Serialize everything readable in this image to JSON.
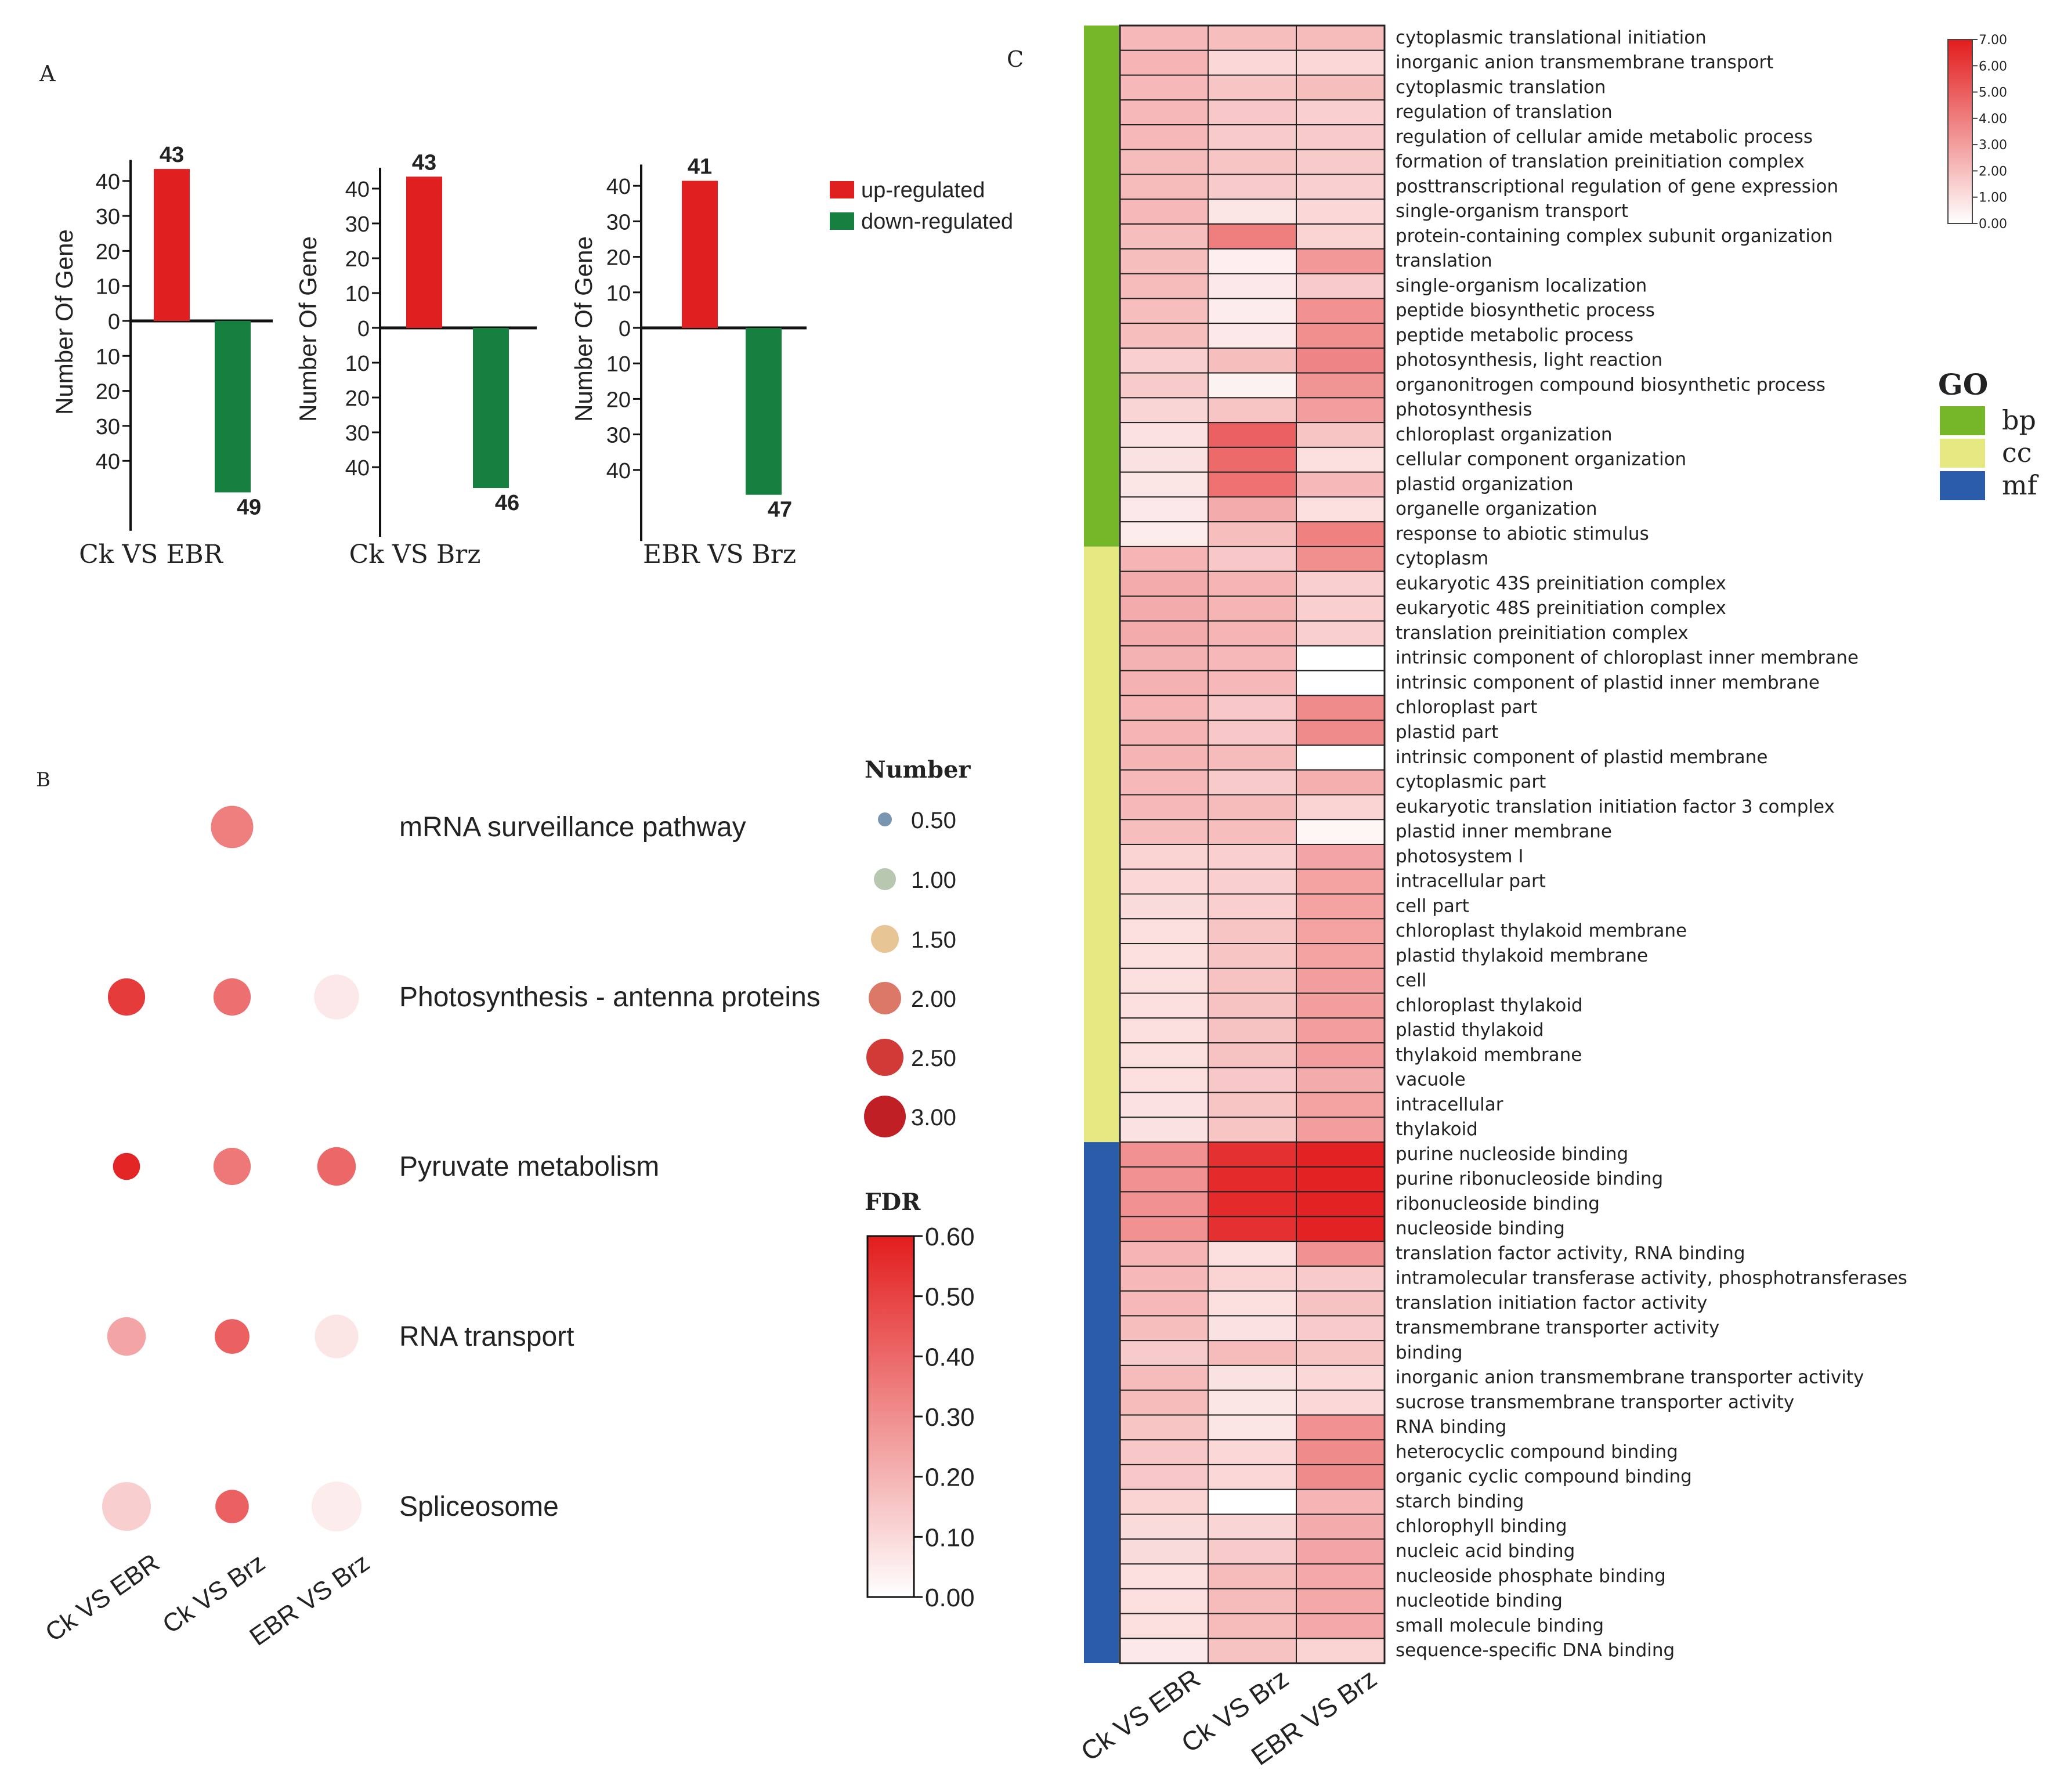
{
  "chart_data": [
    {
      "panel": "A",
      "type": "bar",
      "panel_label": "A",
      "ylabel": "Number Of Gene",
      "legend": {
        "position": "right",
        "up": "up-regulated",
        "down": "down-regulated"
      },
      "colors": {
        "up": "#e02020",
        "down": "#168040"
      },
      "ticks": [
        "40",
        "30",
        "20",
        "10",
        "0",
        "10",
        "20",
        "30",
        "40"
      ],
      "groups": [
        {
          "name": "Ck VS EBR",
          "up": 43,
          "down": 49
        },
        {
          "name": "Ck VS Brz",
          "up": 43,
          "down": 46
        },
        {
          "name": "EBR VS Brz",
          "up": 41,
          "down": 47
        }
      ]
    },
    {
      "panel": "B",
      "type": "scatter",
      "panel_label": "B",
      "x": [
        "Ck VS EBR",
        "Ck VS Brz",
        "EBR VS Brz"
      ],
      "pathways": [
        "mRNA surveillance pathway",
        "Photosynthesis - antenna proteins",
        "Pyruvate metabolism",
        "RNA transport",
        "Spliceosome"
      ],
      "number": [
        [
          null,
          2.5,
          null
        ],
        [
          2.1,
          2.1,
          2.7
        ],
        [
          1.3,
          2.1,
          2.2
        ],
        [
          2.2,
          1.9,
          2.6
        ],
        [
          3.0,
          1.8,
          3.1
        ]
      ],
      "fdr": [
        [
          null,
          0.34,
          null
        ],
        [
          0.52,
          0.38,
          0.06
        ],
        [
          0.58,
          0.36,
          0.4
        ],
        [
          0.24,
          0.42,
          0.07
        ],
        [
          0.13,
          0.42,
          0.05
        ]
      ],
      "size_legend_title": "Number",
      "size_legend": [
        {
          "label": "0.50",
          "value": 0.5,
          "color": "#7a95b0"
        },
        {
          "label": "1.00",
          "value": 1.0,
          "color": "#b8c8b0"
        },
        {
          "label": "1.50",
          "value": 1.5,
          "color": "#e8c595"
        },
        {
          "label": "2.00",
          "value": 2.0,
          "color": "#dc7868"
        },
        {
          "label": "2.50",
          "value": 2.5,
          "color": "#d23a38"
        },
        {
          "label": "3.00",
          "value": 3.0,
          "color": "#c01f25"
        }
      ],
      "color_legend_title": "FDR",
      "color_range": [
        0,
        0.6
      ],
      "color_ticks": [
        "0.60",
        "0.50",
        "0.40",
        "0.30",
        "0.20",
        "0.10",
        "0.00"
      ]
    },
    {
      "panel": "C",
      "type": "heatmap",
      "panel_label": "C",
      "columns": [
        "Ck VS EBR",
        "Ck VS Brz",
        "EBR VS Brz"
      ],
      "color_range": [
        0,
        7
      ],
      "colorbar_ticks": [
        "7.00",
        "6.00",
        "5.00",
        "4.00",
        "3.00",
        "2.00",
        "1.00",
        "0.00"
      ],
      "group_legend_title": "GO",
      "groups": [
        {
          "name": "bp",
          "color": "#76b72a"
        },
        {
          "name": "cc",
          "color": "#e6e882"
        },
        {
          "name": "mf",
          "color": "#2a5caa"
        }
      ],
      "rows": [
        {
          "term": "cytoplasmic translational initiation",
          "group": "bp",
          "values": [
            2.2,
            2.0,
            2.1
          ]
        },
        {
          "term": "inorganic anion transmembrane transport",
          "group": "bp",
          "values": [
            2.3,
            1.2,
            1.2
          ]
        },
        {
          "term": "cytoplasmic translation",
          "group": "bp",
          "values": [
            2.2,
            1.8,
            2.0
          ]
        },
        {
          "term": "regulation of translation",
          "group": "bp",
          "values": [
            2.2,
            1.7,
            1.5
          ]
        },
        {
          "term": "regulation of cellular amide metabolic process",
          "group": "bp",
          "values": [
            2.2,
            1.6,
            1.6
          ]
        },
        {
          "term": "formation of translation preinitiation complex",
          "group": "bp",
          "values": [
            2.1,
            1.8,
            1.6
          ]
        },
        {
          "term": "posttranscriptional regulation of gene expression",
          "group": "bp",
          "values": [
            2.1,
            1.6,
            1.5
          ]
        },
        {
          "term": "single-organism transport",
          "group": "bp",
          "values": [
            2.2,
            0.8,
            1.2
          ]
        },
        {
          "term": "protein-containing complex subunit organization",
          "group": "bp",
          "values": [
            2.0,
            4.0,
            1.4
          ]
        },
        {
          "term": "translation",
          "group": "bp",
          "values": [
            2.0,
            0.5,
            3.2
          ]
        },
        {
          "term": "single-organism localization",
          "group": "bp",
          "values": [
            2.1,
            0.7,
            1.6
          ]
        },
        {
          "term": "peptide biosynthetic process",
          "group": "bp",
          "values": [
            2.0,
            0.6,
            3.4
          ]
        },
        {
          "term": "peptide metabolic process",
          "group": "bp",
          "values": [
            2.0,
            0.7,
            3.5
          ]
        },
        {
          "term": "photosynthesis, light reaction",
          "group": "bp",
          "values": [
            1.5,
            2.0,
            3.8
          ]
        },
        {
          "term": "organonitrogen compound biosynthetic process",
          "group": "bp",
          "values": [
            1.6,
            0.4,
            3.3
          ]
        },
        {
          "term": "photosynthesis",
          "group": "bp",
          "values": [
            1.3,
            1.8,
            3.0
          ]
        },
        {
          "term": "chloroplast organization",
          "group": "bp",
          "values": [
            0.9,
            4.9,
            1.8
          ]
        },
        {
          "term": "cellular component organization",
          "group": "bp",
          "values": [
            0.9,
            4.6,
            1.0
          ]
        },
        {
          "term": "plastid organization",
          "group": "bp",
          "values": [
            0.8,
            4.4,
            2.2
          ]
        },
        {
          "term": "organelle organization",
          "group": "bp",
          "values": [
            0.7,
            2.6,
            1.0
          ]
        },
        {
          "term": "response to abiotic stimulus",
          "group": "bp",
          "values": [
            0.6,
            2.0,
            3.9
          ]
        },
        {
          "term": "cytoplasm",
          "group": "cc",
          "values": [
            2.3,
            1.7,
            3.5
          ]
        },
        {
          "term": "eukaryotic 43S preinitiation complex",
          "group": "cc",
          "values": [
            2.6,
            2.3,
            1.5
          ]
        },
        {
          "term": "eukaryotic 48S preinitiation complex",
          "group": "cc",
          "values": [
            2.6,
            2.3,
            1.5
          ]
        },
        {
          "term": "translation preinitiation complex",
          "group": "cc",
          "values": [
            2.6,
            2.3,
            1.5
          ]
        },
        {
          "term": "intrinsic component of chloroplast inner membrane",
          "group": "cc",
          "values": [
            2.4,
            2.2,
            0.0
          ]
        },
        {
          "term": "intrinsic component of plastid inner membrane",
          "group": "cc",
          "values": [
            2.4,
            2.2,
            0.0
          ]
        },
        {
          "term": "chloroplast part",
          "group": "cc",
          "values": [
            2.3,
            1.7,
            3.6
          ]
        },
        {
          "term": "plastid part",
          "group": "cc",
          "values": [
            2.3,
            1.7,
            3.6
          ]
        },
        {
          "term": "intrinsic component of plastid membrane",
          "group": "cc",
          "values": [
            2.3,
            2.1,
            0.0
          ]
        },
        {
          "term": "cytoplasmic part",
          "group": "cc",
          "values": [
            2.2,
            1.6,
            2.5
          ]
        },
        {
          "term": "eukaryotic translation initiation factor 3 complex",
          "group": "cc",
          "values": [
            2.2,
            2.1,
            1.4
          ]
        },
        {
          "term": "plastid inner membrane",
          "group": "cc",
          "values": [
            2.0,
            2.0,
            0.3
          ]
        },
        {
          "term": "photosystem I",
          "group": "cc",
          "values": [
            1.4,
            1.5,
            2.8
          ]
        },
        {
          "term": "intracellular part",
          "group": "cc",
          "values": [
            1.2,
            1.5,
            2.9
          ]
        },
        {
          "term": "cell part",
          "group": "cc",
          "values": [
            1.1,
            1.5,
            2.9
          ]
        },
        {
          "term": "chloroplast thylakoid membrane",
          "group": "cc",
          "values": [
            1.0,
            1.8,
            2.9
          ]
        },
        {
          "term": "plastid thylakoid membrane",
          "group": "cc",
          "values": [
            1.0,
            1.8,
            2.9
          ]
        },
        {
          "term": "cell",
          "group": "cc",
          "values": [
            1.0,
            1.9,
            3.0
          ]
        },
        {
          "term": "chloroplast thylakoid",
          "group": "cc",
          "values": [
            1.0,
            1.9,
            3.0
          ]
        },
        {
          "term": "plastid thylakoid",
          "group": "cc",
          "values": [
            1.0,
            1.9,
            3.0
          ]
        },
        {
          "term": "thylakoid membrane",
          "group": "cc",
          "values": [
            1.0,
            1.9,
            3.0
          ]
        },
        {
          "term": "vacuole",
          "group": "cc",
          "values": [
            1.0,
            1.7,
            2.6
          ]
        },
        {
          "term": "intracellular",
          "group": "cc",
          "values": [
            0.9,
            1.8,
            2.9
          ]
        },
        {
          "term": "thylakoid",
          "group": "cc",
          "values": [
            0.9,
            1.8,
            3.0
          ]
        },
        {
          "term": "purine nucleoside binding",
          "group": "mf",
          "values": [
            3.4,
            6.4,
            6.8
          ]
        },
        {
          "term": "purine ribonucleoside binding",
          "group": "mf",
          "values": [
            3.4,
            6.6,
            6.8
          ]
        },
        {
          "term": "ribonucleoside binding",
          "group": "mf",
          "values": [
            3.4,
            6.6,
            6.8
          ]
        },
        {
          "term": "nucleoside binding",
          "group": "mf",
          "values": [
            3.4,
            6.4,
            6.8
          ]
        },
        {
          "term": "translation factor activity, RNA binding",
          "group": "mf",
          "values": [
            2.3,
            1.0,
            3.4
          ]
        },
        {
          "term": "intramolecular transferase activity, phosphotransferases",
          "group": "mf",
          "values": [
            2.2,
            1.4,
            1.6
          ]
        },
        {
          "term": "translation initiation factor activity",
          "group": "mf",
          "values": [
            2.2,
            1.0,
            1.9
          ]
        },
        {
          "term": "transmembrane transporter activity",
          "group": "mf",
          "values": [
            2.0,
            0.9,
            1.6
          ]
        },
        {
          "term": "binding",
          "group": "mf",
          "values": [
            1.6,
            2.1,
            1.8
          ]
        },
        {
          "term": "inorganic anion transmembrane transporter activity",
          "group": "mf",
          "values": [
            2.1,
            0.9,
            1.2
          ]
        },
        {
          "term": "sucrose transmembrane transporter activity",
          "group": "mf",
          "values": [
            2.1,
            0.8,
            1.2
          ]
        },
        {
          "term": "RNA binding",
          "group": "mf",
          "values": [
            1.8,
            0.8,
            3.4
          ]
        },
        {
          "term": "heterocyclic compound binding",
          "group": "mf",
          "values": [
            1.7,
            1.2,
            3.6
          ]
        },
        {
          "term": "organic cyclic compound binding",
          "group": "mf",
          "values": [
            1.7,
            1.2,
            3.6
          ]
        },
        {
          "term": "starch binding",
          "group": "mf",
          "values": [
            1.4,
            0.0,
            2.3
          ]
        },
        {
          "term": "chlorophyll binding",
          "group": "mf",
          "values": [
            1.1,
            1.3,
            2.6
          ]
        },
        {
          "term": "nucleic acid binding",
          "group": "mf",
          "values": [
            1.1,
            1.6,
            2.8
          ]
        },
        {
          "term": "nucleoside phosphate binding",
          "group": "mf",
          "values": [
            1.0,
            2.1,
            2.7
          ]
        },
        {
          "term": "nucleotide binding",
          "group": "mf",
          "values": [
            1.0,
            2.1,
            2.7
          ]
        },
        {
          "term": "small molecule binding",
          "group": "mf",
          "values": [
            1.0,
            2.1,
            2.7
          ]
        },
        {
          "term": "sequence-specific DNA binding",
          "group": "mf",
          "values": [
            0.7,
            1.9,
            1.4
          ]
        }
      ]
    }
  ]
}
